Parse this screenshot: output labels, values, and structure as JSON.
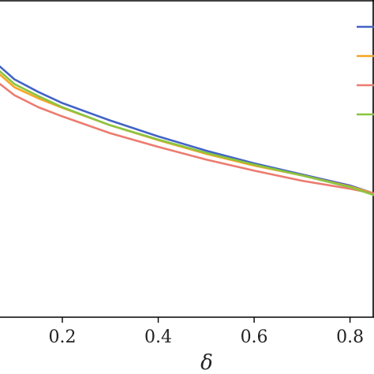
{
  "chart_data": {
    "type": "line",
    "xlabel": "δ",
    "ylabel": "",
    "title": "",
    "xlim": [
      0.07,
      0.85
    ],
    "ylim": [
      0.0,
      1.0
    ],
    "xticks": [
      0.2,
      0.4,
      0.6,
      0.8
    ],
    "xtick_labels": [
      "0.2",
      "0.4",
      "0.6",
      "0.8"
    ],
    "grid": false,
    "legend": {
      "placement": "top-right",
      "colors": [
        "#4363c6",
        "#f5a623",
        "#ec7b6f",
        "#8ac43f"
      ]
    },
    "series": [
      {
        "color": "#4363c6",
        "x": [
          0.07,
          0.1,
          0.15,
          0.2,
          0.3,
          0.4,
          0.5,
          0.6,
          0.7,
          0.8,
          0.85
        ],
        "y": [
          0.79,
          0.75,
          0.71,
          0.675,
          0.62,
          0.57,
          0.525,
          0.485,
          0.45,
          0.415,
          0.39
        ]
      },
      {
        "color": "#f5a623",
        "x": [
          0.07,
          0.1,
          0.15,
          0.2,
          0.3,
          0.4,
          0.5,
          0.6,
          0.7,
          0.8,
          0.85
        ],
        "y": [
          0.765,
          0.725,
          0.69,
          0.66,
          0.605,
          0.558,
          0.515,
          0.478,
          0.447,
          0.412,
          0.39
        ]
      },
      {
        "color": "#ec7b6f",
        "x": [
          0.07,
          0.1,
          0.15,
          0.2,
          0.3,
          0.4,
          0.5,
          0.6,
          0.7,
          0.8,
          0.85
        ],
        "y": [
          0.735,
          0.7,
          0.662,
          0.633,
          0.58,
          0.537,
          0.497,
          0.462,
          0.43,
          0.405,
          0.39
        ]
      },
      {
        "color": "#8ac43f",
        "x": [
          0.07,
          0.1,
          0.15,
          0.2,
          0.3,
          0.4,
          0.5,
          0.6,
          0.7,
          0.8,
          0.85
        ],
        "y": [
          0.775,
          0.735,
          0.697,
          0.662,
          0.605,
          0.56,
          0.518,
          0.481,
          0.447,
          0.41,
          0.385
        ]
      }
    ]
  }
}
